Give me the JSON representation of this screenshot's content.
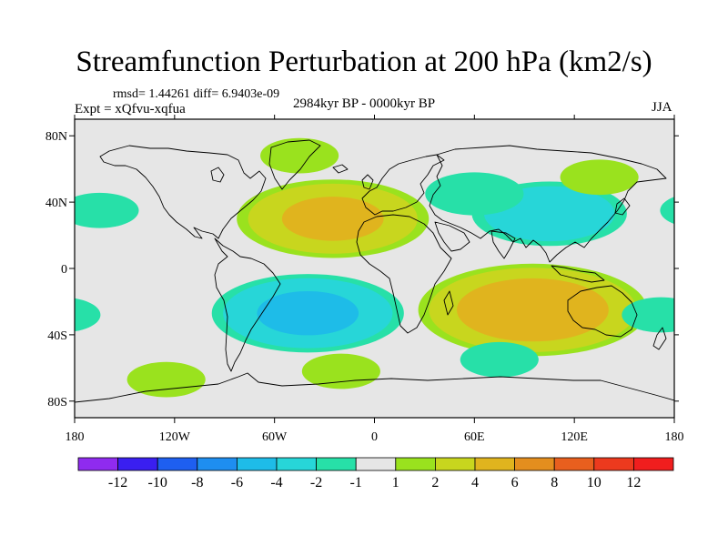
{
  "title": "Streamfunction Perturbation at 200 hPa (km2/s)",
  "stats": "rmsd= 1.44261 diff= 6.9403e-09",
  "expt": "Expt = xQfvu-xqfua",
  "period": "2984kyr BP - 0000kyr BP",
  "season": "JJA",
  "map": {
    "projection": "cylindrical-equidistant",
    "lon_range": [
      -180,
      180
    ],
    "lat_range": [
      -90,
      90
    ],
    "background": "#e6e6e6",
    "x_ticks": [
      {
        "value": -180,
        "label": "180"
      },
      {
        "value": -120,
        "label": "120W"
      },
      {
        "value": -60,
        "label": "60W"
      },
      {
        "value": 0,
        "label": "0"
      },
      {
        "value": 60,
        "label": "60E"
      },
      {
        "value": 120,
        "label": "120E"
      },
      {
        "value": 180,
        "label": "180"
      }
    ],
    "y_ticks": [
      {
        "value": 80,
        "label": "80N"
      },
      {
        "value": 40,
        "label": "40N"
      },
      {
        "value": 0,
        "label": "0"
      },
      {
        "value": -40,
        "label": "40S"
      },
      {
        "value": -80,
        "label": "80S"
      }
    ]
  },
  "anomalies": [
    {
      "name": "north-atlantic-high",
      "lon": -25,
      "lat": 30,
      "peak": 4.5
    },
    {
      "name": "greenland-high",
      "lon": -45,
      "lat": 68,
      "peak": 1.5
    },
    {
      "name": "south-indian-high",
      "lon": 95,
      "lat": -25,
      "peak": 5.5
    },
    {
      "name": "south-atlantic-low",
      "lon": -40,
      "lat": -27,
      "peak": -4.5
    },
    {
      "name": "asia-low",
      "lon": 105,
      "lat": 33,
      "peak": -3.5
    },
    {
      "name": "eastern-europe-low",
      "lon": 60,
      "lat": 45,
      "peak": -2
    },
    {
      "name": "north-pacific-low",
      "lon": -165,
      "lat": 35,
      "peak": -1.5
    },
    {
      "name": "west-pacific-high",
      "lon": 135,
      "lat": 55,
      "peak": 1.5
    },
    {
      "name": "southeast-pacific-high",
      "lon": -125,
      "lat": -67,
      "peak": 1.5
    },
    {
      "name": "south-ocean-high",
      "lon": -20,
      "lat": -62,
      "peak": 1.5
    },
    {
      "name": "dateline-south-low",
      "lon": 172,
      "lat": -28,
      "peak": -1.5
    },
    {
      "name": "south-indian-ocean-low",
      "lon": 75,
      "lat": -55,
      "peak": -1.5
    }
  ],
  "colorbar": {
    "levels": [
      -14,
      -12,
      -10,
      -8,
      -6,
      -4,
      -2,
      -1,
      1,
      2,
      4,
      6,
      8,
      10,
      12,
      14
    ],
    "labels": [
      "-12",
      "-10",
      "-8",
      "-6",
      "-4",
      "-2",
      "-1",
      "1",
      "2",
      "4",
      "6",
      "8",
      "10",
      "12"
    ],
    "colors": [
      "#8f2bef",
      "#3a1ff0",
      "#1e5ff0",
      "#1e8ef0",
      "#1ebce8",
      "#27d6d8",
      "#27e0a8",
      "#e6e6e6",
      "#9ae21e",
      "#c8d61e",
      "#e0b41e",
      "#e48e1e",
      "#e85f1e",
      "#ec3a1e",
      "#f01e1e"
    ]
  }
}
